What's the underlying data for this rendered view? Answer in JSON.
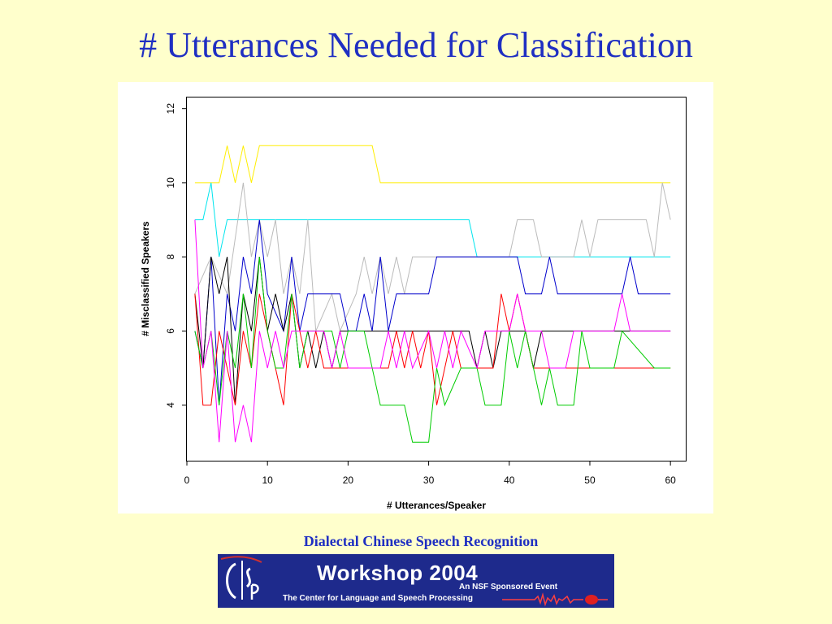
{
  "slide": {
    "title": "# Utterances Needed for Classification",
    "footer": "Dialectal Chinese Speech Recognition"
  },
  "banner": {
    "title": "Workshop 2004",
    "subtitle": "An NSF Sponsored Event",
    "org": "The Center for Language and Speech Processing"
  },
  "chart_data": {
    "type": "line",
    "xlabel": "# Utterances/Speaker",
    "ylabel": "# Misclassified Speakers",
    "xlim": [
      0,
      62
    ],
    "ylim": [
      2.5,
      12.3
    ],
    "xticks": [
      0,
      10,
      20,
      30,
      40,
      50,
      60
    ],
    "yticks": [
      4,
      6,
      8,
      10,
      12
    ],
    "grid": false,
    "legend": "none",
    "series": [
      {
        "color": "#ffee00",
        "points": [
          [
            1,
            10
          ],
          [
            4,
            10
          ],
          [
            5,
            11
          ],
          [
            6,
            10
          ],
          [
            7,
            11
          ],
          [
            8,
            10
          ],
          [
            9,
            11
          ],
          [
            23,
            11
          ],
          [
            24,
            10
          ],
          [
            60,
            10
          ]
        ]
      },
      {
        "color": "#00e5ee",
        "points": [
          [
            1,
            9
          ],
          [
            2,
            9
          ],
          [
            3,
            10
          ],
          [
            4,
            8
          ],
          [
            5,
            9
          ],
          [
            35,
            9
          ],
          [
            36,
            8
          ],
          [
            60,
            8
          ]
        ]
      },
      {
        "color": "#bbbbbb",
        "points": [
          [
            1,
            7
          ],
          [
            3,
            8
          ],
          [
            5,
            7
          ],
          [
            7,
            10
          ],
          [
            8,
            8
          ],
          [
            9,
            9
          ],
          [
            10,
            8
          ],
          [
            11,
            9
          ],
          [
            12,
            7
          ],
          [
            13,
            8
          ],
          [
            14,
            7
          ],
          [
            15,
            9
          ],
          [
            16,
            6
          ],
          [
            18,
            7
          ],
          [
            19,
            6
          ],
          [
            21,
            7
          ],
          [
            22,
            8
          ],
          [
            23,
            7
          ],
          [
            24,
            8
          ],
          [
            25,
            7
          ],
          [
            26,
            8
          ],
          [
            27,
            7
          ],
          [
            28,
            8
          ],
          [
            40,
            8
          ],
          [
            41,
            9
          ],
          [
            43,
            9
          ],
          [
            44,
            8
          ],
          [
            48,
            8
          ],
          [
            49,
            9
          ],
          [
            50,
            8
          ],
          [
            51,
            9
          ],
          [
            57,
            9
          ],
          [
            58,
            8
          ],
          [
            59,
            10
          ],
          [
            60,
            9
          ]
        ]
      },
      {
        "color": "#0000cc",
        "points": [
          [
            1,
            6
          ],
          [
            2,
            5
          ],
          [
            3,
            8
          ],
          [
            4,
            4
          ],
          [
            5,
            7
          ],
          [
            6,
            6
          ],
          [
            7,
            8
          ],
          [
            8,
            7
          ],
          [
            9,
            9
          ],
          [
            10,
            7
          ],
          [
            12,
            6
          ],
          [
            13,
            8
          ],
          [
            14,
            6
          ],
          [
            15,
            7
          ],
          [
            19,
            7
          ],
          [
            20,
            6
          ],
          [
            21,
            6
          ],
          [
            22,
            7
          ],
          [
            23,
            6
          ],
          [
            24,
            8
          ],
          [
            25,
            6
          ],
          [
            26,
            7
          ],
          [
            30,
            7
          ],
          [
            31,
            8
          ],
          [
            40,
            8
          ],
          [
            41,
            8
          ],
          [
            42,
            7
          ],
          [
            44,
            7
          ],
          [
            45,
            8
          ],
          [
            46,
            7
          ],
          [
            54,
            7
          ],
          [
            55,
            8
          ],
          [
            56,
            7
          ],
          [
            60,
            7
          ]
        ]
      },
      {
        "color": "#000000",
        "points": [
          [
            1,
            7
          ],
          [
            2,
            5
          ],
          [
            3,
            8
          ],
          [
            4,
            7
          ],
          [
            5,
            8
          ],
          [
            6,
            4
          ],
          [
            7,
            7
          ],
          [
            8,
            6
          ],
          [
            9,
            8
          ],
          [
            10,
            6
          ],
          [
            11,
            7
          ],
          [
            12,
            6
          ],
          [
            13,
            7
          ],
          [
            14,
            5
          ],
          [
            15,
            6
          ],
          [
            16,
            5
          ],
          [
            17,
            6
          ],
          [
            18,
            5
          ],
          [
            19,
            6
          ],
          [
            35,
            6
          ],
          [
            36,
            5
          ],
          [
            37,
            6
          ],
          [
            38,
            5
          ],
          [
            39,
            6
          ],
          [
            42,
            6
          ],
          [
            43,
            5
          ],
          [
            44,
            6
          ],
          [
            60,
            6
          ]
        ]
      },
      {
        "color": "#ff0000",
        "points": [
          [
            1,
            7
          ],
          [
            2,
            4
          ],
          [
            3,
            4
          ],
          [
            4,
            6
          ],
          [
            5,
            5
          ],
          [
            6,
            4
          ],
          [
            7,
            6
          ],
          [
            8,
            5
          ],
          [
            9,
            7
          ],
          [
            10,
            6
          ],
          [
            11,
            5
          ],
          [
            12,
            4
          ],
          [
            13,
            7
          ],
          [
            14,
            6
          ],
          [
            15,
            5
          ],
          [
            16,
            6
          ],
          [
            17,
            5
          ],
          [
            20,
            5
          ],
          [
            25,
            5
          ],
          [
            26,
            6
          ],
          [
            27,
            5
          ],
          [
            28,
            6
          ],
          [
            29,
            5
          ],
          [
            30,
            6
          ],
          [
            31,
            4
          ],
          [
            32,
            5
          ],
          [
            33,
            6
          ],
          [
            34,
            5
          ],
          [
            38,
            5
          ],
          [
            39,
            7
          ],
          [
            40,
            6
          ],
          [
            41,
            7
          ],
          [
            42,
            6
          ],
          [
            43,
            5
          ],
          [
            60,
            5
          ]
        ]
      },
      {
        "color": "#00cc00",
        "points": [
          [
            1,
            6
          ],
          [
            2,
            5
          ],
          [
            3,
            6
          ],
          [
            4,
            4
          ],
          [
            5,
            6
          ],
          [
            6,
            5
          ],
          [
            7,
            7
          ],
          [
            8,
            5
          ],
          [
            9,
            8
          ],
          [
            10,
            6
          ],
          [
            11,
            5
          ],
          [
            12,
            5
          ],
          [
            13,
            7
          ],
          [
            14,
            5
          ],
          [
            15,
            6
          ],
          [
            16,
            6
          ],
          [
            18,
            6
          ],
          [
            19,
            5
          ],
          [
            20,
            6
          ],
          [
            22,
            6
          ],
          [
            23,
            5
          ],
          [
            24,
            4
          ],
          [
            27,
            4
          ],
          [
            28,
            3
          ],
          [
            30,
            3
          ],
          [
            31,
            5
          ],
          [
            32,
            4
          ],
          [
            34,
            5
          ],
          [
            36,
            5
          ],
          [
            37,
            4
          ],
          [
            39,
            4
          ],
          [
            40,
            6
          ],
          [
            41,
            5
          ],
          [
            42,
            6
          ],
          [
            44,
            4
          ],
          [
            45,
            5
          ],
          [
            46,
            4
          ],
          [
            48,
            4
          ],
          [
            49,
            6
          ],
          [
            50,
            5
          ],
          [
            53,
            5
          ],
          [
            54,
            6
          ],
          [
            58,
            5
          ],
          [
            60,
            5
          ]
        ]
      },
      {
        "color": "#ff00ff",
        "points": [
          [
            1,
            9
          ],
          [
            2,
            5
          ],
          [
            3,
            6
          ],
          [
            4,
            3
          ],
          [
            5,
            6
          ],
          [
            6,
            3
          ],
          [
            7,
            4
          ],
          [
            8,
            3
          ],
          [
            9,
            6
          ],
          [
            10,
            5
          ],
          [
            11,
            6
          ],
          [
            12,
            5
          ],
          [
            13,
            6
          ],
          [
            14,
            6
          ],
          [
            17,
            6
          ],
          [
            18,
            5
          ],
          [
            19,
            6
          ],
          [
            20,
            5
          ],
          [
            24,
            5
          ],
          [
            25,
            6
          ],
          [
            26,
            5
          ],
          [
            27,
            6
          ],
          [
            28,
            5
          ],
          [
            30,
            6
          ],
          [
            31,
            5
          ],
          [
            32,
            6
          ],
          [
            33,
            5
          ],
          [
            34,
            6
          ],
          [
            36,
            5
          ],
          [
            37,
            6
          ],
          [
            38,
            6
          ],
          [
            40,
            6
          ],
          [
            41,
            7
          ],
          [
            42,
            6
          ],
          [
            44,
            6
          ],
          [
            45,
            5
          ],
          [
            47,
            5
          ],
          [
            48,
            6
          ],
          [
            53,
            6
          ],
          [
            54,
            7
          ],
          [
            55,
            6
          ],
          [
            60,
            6
          ]
        ]
      }
    ]
  }
}
